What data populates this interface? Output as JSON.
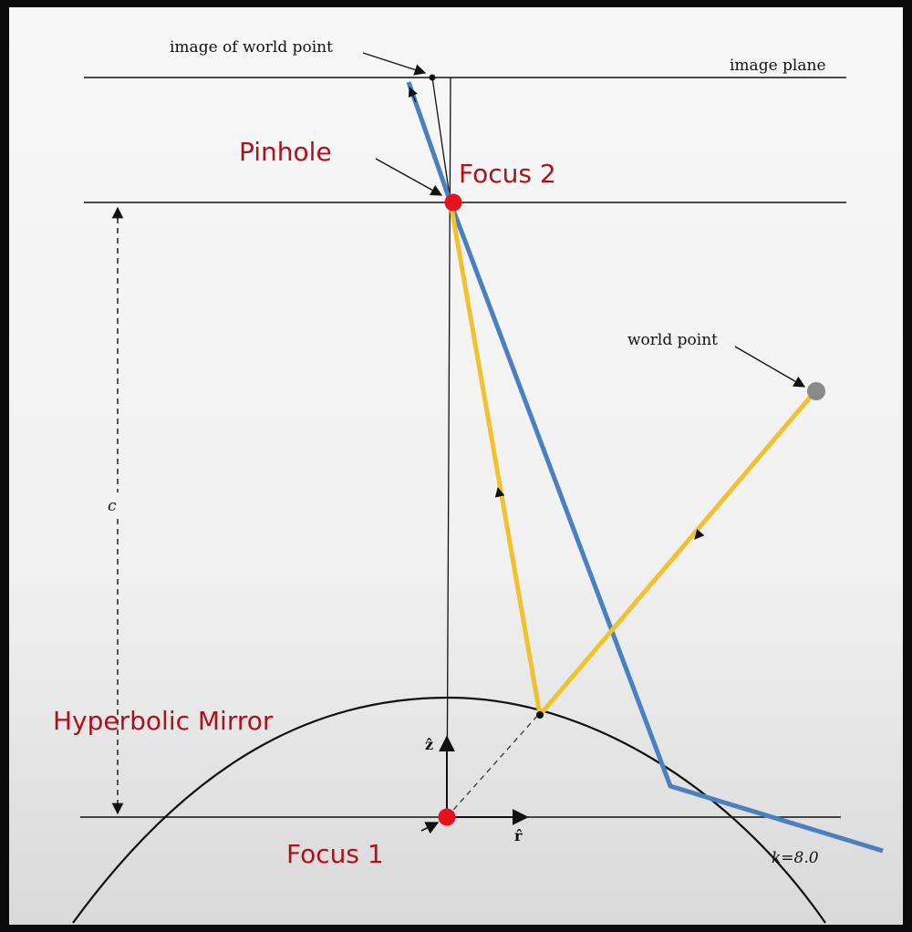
{
  "labels": {
    "image_of_world_point": "image of world point",
    "image_plane": "image plane",
    "pinhole": "Pinhole",
    "focus_2": "Focus 2",
    "world_point": "world point",
    "c": "c",
    "hyperbolic_mirror": "Hyperbolic Mirror",
    "z_axis": "ẑ",
    "r_axis": "r̂",
    "focus_1": "Focus 1",
    "k_value": "k=8.0"
  },
  "colors": {
    "background_outer": "#0b0b0b",
    "panel": "#f3f3f3",
    "line": "#111111",
    "red_point": "#e8101e",
    "red_text": "#b0101c",
    "blue_ray": "#4a7fc0",
    "yellow_ray": "#f2c12e",
    "grey_point": "#8a8a8a"
  }
}
